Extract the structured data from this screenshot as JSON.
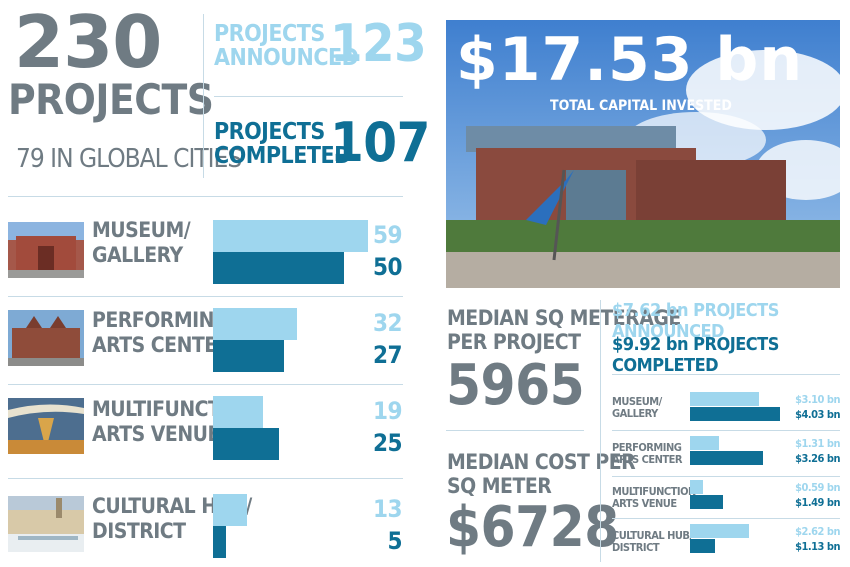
{
  "header": {
    "total_projects": "230",
    "projects_word": "PROJECTS",
    "global_cities": "79 IN GLOBAL CITIES",
    "announced_label_1": "PROJECTS",
    "announced_label_2": "ANNOUNCED",
    "announced_value": "123",
    "completed_label_1": "PROJECTS",
    "completed_label_2": "COMPLETED",
    "completed_value": "107"
  },
  "hero": {
    "amount": "$17.53 bn",
    "subtitle": "TOTAL CAPITAL INVESTED"
  },
  "median": {
    "meterage_label_1": "MEDIAN SQ METERAGE",
    "meterage_label_2": "PER PROJECT",
    "meterage_value": "5965",
    "cost_label_1": "MEDIAN COST PER",
    "cost_label_2": "SQ METER",
    "cost_value": "$6728"
  },
  "legend": {
    "announced": "$7.62 bn PROJECTS ANNOUNCED",
    "completed": "$9.92 bn PROJECTS COMPLETED"
  },
  "colors": {
    "announced": "#9ed6ee",
    "completed": "#0f6f95",
    "text_grey": "#6f7b83"
  },
  "chart_data": [
    {
      "type": "bar",
      "categories": [
        "MUSEUM/ GALLERY",
        "PERFORMING ARTS CENTER",
        "MULTIFUNCTION ARTS VENUE",
        "CULTURAL HUB/ DISTRICT"
      ],
      "category_lines": [
        [
          "MUSEUM/",
          "GALLERY"
        ],
        [
          "PERFORMING",
          "ARTS CENTER"
        ],
        [
          "MULTIFUNCTION",
          "ARTS VENUE"
        ],
        [
          "CULTURAL HUB/",
          "DISTRICT"
        ]
      ],
      "series": [
        {
          "values": [
            59,
            32,
            19,
            13
          ],
          "labels": [
            "59",
            "32",
            "19",
            "13"
          ],
          "color": "#9ed6ee"
        },
        {
          "values": [
            50,
            27,
            25,
            5
          ],
          "labels": [
            "50",
            "27",
            "25",
            "5"
          ],
          "color": "#0f6f95"
        }
      ],
      "xlim": [
        0,
        59
      ],
      "orientation": "horizontal"
    },
    {
      "type": "bar",
      "categories": [
        "MUSEUM/ GALLERY",
        "PERFORMING ARTS CENTER",
        "MULTIFUNCTION ARTS VENUE",
        "CULTURAL HUB/ DISTRICT"
      ],
      "category_lines": [
        [
          "MUSEUM/",
          "GALLERY"
        ],
        [
          "PERFORMING",
          "ARTS CENTER"
        ],
        [
          "MULTIFUNCTION",
          "ARTS VENUE"
        ],
        [
          "CULTURAL HUB/",
          "DISTRICT"
        ]
      ],
      "series": [
        {
          "values": [
            3.1,
            1.31,
            0.59,
            2.62
          ],
          "labels": [
            "$3.10 bn",
            "$1.31 bn",
            "$0.59 bn",
            "$2.62 bn"
          ],
          "color": "#9ed6ee"
        },
        {
          "values": [
            4.03,
            3.26,
            1.49,
            1.13
          ],
          "labels": [
            "$4.03 bn",
            "$3.26 bn",
            "$1.49 bn",
            "$1.13 bn"
          ],
          "color": "#0f6f95"
        }
      ],
      "xlim": [
        0,
        4.03
      ],
      "orientation": "horizontal"
    }
  ]
}
